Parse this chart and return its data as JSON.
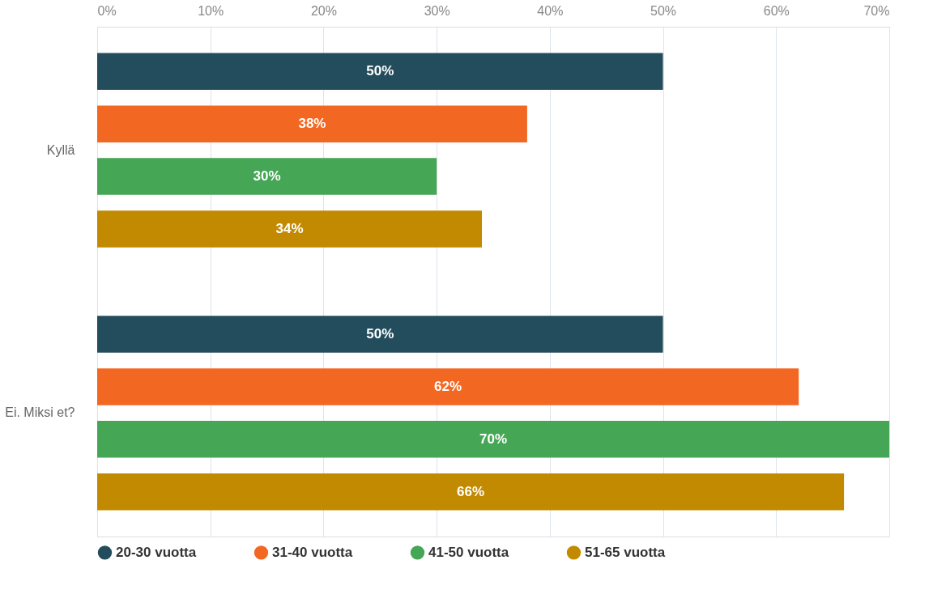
{
  "chart_data": {
    "type": "bar",
    "orientation": "horizontal",
    "categories": [
      "Kyllä",
      "Ei. Miksi et?"
    ],
    "series": [
      {
        "name": "20-30 vuotta",
        "color": "#234d5c",
        "values": [
          50,
          50
        ],
        "value_labels": [
          "50%",
          "50%"
        ]
      },
      {
        "name": "31-40 vuotta",
        "color": "#f26722",
        "values": [
          38,
          62
        ],
        "value_labels": [
          "38%",
          "62%"
        ]
      },
      {
        "name": "41-50 vuotta",
        "color": "#45a655",
        "values": [
          30,
          70
        ],
        "value_labels": [
          "30%",
          "70%"
        ]
      },
      {
        "name": "51-65 vuotta",
        "color": "#c28a00",
        "values": [
          34,
          66
        ],
        "value_labels": [
          "34%",
          "66%"
        ]
      }
    ],
    "xlim": [
      0,
      70
    ],
    "xticks": [
      {
        "value": 0,
        "label": "0%"
      },
      {
        "value": 10,
        "label": "10%"
      },
      {
        "value": 20,
        "label": "20%"
      },
      {
        "value": 30,
        "label": "30%"
      },
      {
        "value": 40,
        "label": "40%"
      },
      {
        "value": 50,
        "label": "50%"
      },
      {
        "value": 60,
        "label": "60%"
      },
      {
        "value": 70,
        "label": "70%"
      }
    ],
    "grid": "x",
    "legend": "bottom"
  }
}
